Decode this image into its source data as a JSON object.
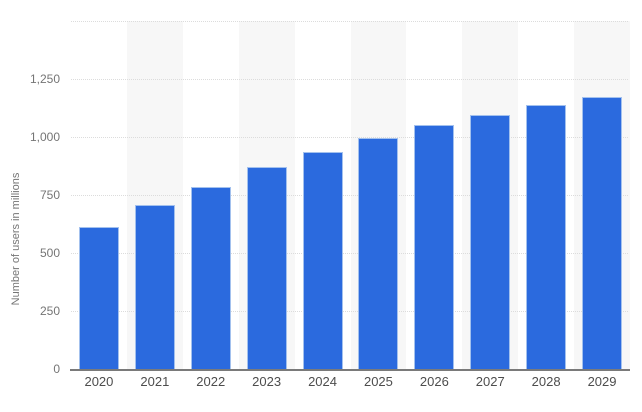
{
  "chart_data": {
    "type": "bar",
    "title": "",
    "categories": [
      "2020",
      "2021",
      "2022",
      "2023",
      "2024",
      "2025",
      "2026",
      "2027",
      "2028",
      "2029"
    ],
    "values": [
      610,
      705,
      785,
      870,
      935,
      995,
      1050,
      1095,
      1135,
      1170
    ],
    "xlabel": "",
    "ylabel": "Number of users in millions",
    "ylim": [
      0,
      1500
    ],
    "yticks": [
      {
        "value": 0,
        "label": "0"
      },
      {
        "value": 250,
        "label": "250"
      },
      {
        "value": 500,
        "label": "500"
      },
      {
        "value": 750,
        "label": "750"
      },
      {
        "value": 1000,
        "label": "1,000"
      },
      {
        "value": 1250,
        "label": "1,250"
      },
      {
        "value": 1500,
        "label": ""
      }
    ],
    "grid": "horizontal-dotted",
    "legend": "none",
    "alternating_column_bands": "behind odd columns (2021, 2023, 2025, 2027, 2029)",
    "colors": {
      "bar_fill": "#2b6ade",
      "bar_border": "#a3c1ee",
      "column_band": "#f7f7f7",
      "gridline": "#dcdcdc",
      "axis_line": "#7a7a7a",
      "ytick_text": "#757575",
      "xtick_text": "#4d4d4d",
      "background": "#ffffff"
    }
  }
}
